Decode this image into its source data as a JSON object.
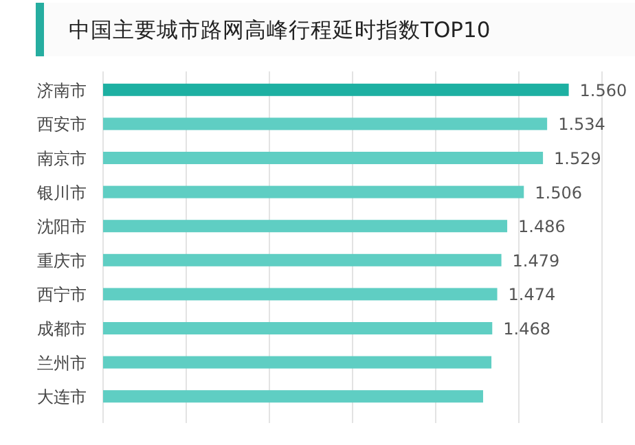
{
  "chart_data": {
    "type": "bar",
    "orientation": "horizontal",
    "title": "中国主要城市路网高峰行程延时指数TOP10",
    "categories": [
      "济南市",
      "西安市",
      "南京市",
      "银川市",
      "沈阳市",
      "重庆市",
      "西宁市",
      "成都市",
      "兰州市",
      "大连市"
    ],
    "values": [
      1.56,
      1.534,
      1.529,
      1.506,
      1.486,
      1.479,
      1.474,
      1.468,
      1.467,
      1.457
    ],
    "value_labels": [
      "1.560",
      "1.534",
      "1.529",
      "1.506",
      "1.486",
      "1.479",
      "1.474",
      "1.468",
      null,
      null
    ],
    "colors": [
      "#1db0a2",
      "#5fcec3",
      "#5fcec3",
      "#5fcec3",
      "#5fcec3",
      "#5fcec3",
      "#5fcec3",
      "#5fcec3",
      "#5fcec3",
      "#5fcec3"
    ],
    "xlim": [
      1.0,
      1.6
    ],
    "xticks": [
      {
        "value": 1.0,
        "label": null
      },
      {
        "value": 1.1,
        "label": null
      },
      {
        "value": 1.2,
        "label": null
      },
      {
        "value": 1.3,
        "label": null
      },
      {
        "value": 1.4,
        "label": null
      },
      {
        "value": 1.5,
        "label": null
      },
      {
        "value": 1.6,
        "label": null
      }
    ],
    "grid": "x",
    "tick_labels": "y"
  }
}
